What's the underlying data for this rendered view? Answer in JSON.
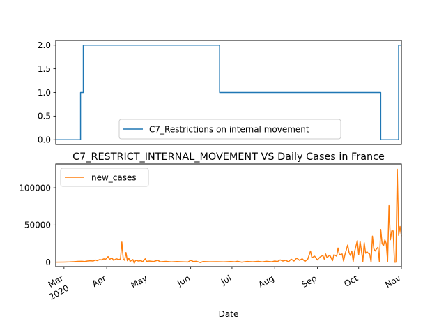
{
  "chart_data": [
    {
      "type": "line",
      "title": "",
      "xlabel": "",
      "ylabel": "",
      "x_range": [
        "2020-02-24",
        "2020-11-01"
      ],
      "ylim": [
        -0.1,
        2.1
      ],
      "yticks": [
        0.0,
        0.5,
        1.0,
        1.5,
        2.0
      ],
      "ytick_labels": [
        "0.0",
        "0.5",
        "1.0",
        "1.5",
        "2.0"
      ],
      "grid": false,
      "legend_position": "bottom-center",
      "series": [
        {
          "name": "C7_Restrictions on internal movement",
          "color": "#1f77b4",
          "step": true,
          "points": [
            [
              "2020-02-24",
              0
            ],
            [
              "2020-03-13",
              0
            ],
            [
              "2020-03-13",
              1
            ],
            [
              "2020-03-15",
              1
            ],
            [
              "2020-03-15",
              2
            ],
            [
              "2020-06-22",
              2
            ],
            [
              "2020-06-22",
              1
            ],
            [
              "2020-10-17",
              1
            ],
            [
              "2020-10-17",
              0
            ],
            [
              "2020-10-30",
              0
            ],
            [
              "2020-10-30",
              2
            ],
            [
              "2020-11-01",
              2
            ]
          ]
        }
      ]
    },
    {
      "type": "line",
      "title": "C7_RESTRICT_INTERNAL_MOVEMENT VS Daily Cases in France",
      "xlabel": "Date",
      "ylabel": "",
      "x_range": [
        "2020-02-24",
        "2020-11-01"
      ],
      "ylim": [
        -6000,
        132000
      ],
      "yticks": [
        0,
        50000,
        100000
      ],
      "ytick_labels": [
        "0",
        "50000",
        "100000"
      ],
      "x_ticks": [
        {
          "date": "2020-03-01",
          "label": "Mar",
          "sublabel": "2020"
        },
        {
          "date": "2020-04-01",
          "label": "Apr",
          "sublabel": ""
        },
        {
          "date": "2020-05-01",
          "label": "May",
          "sublabel": ""
        },
        {
          "date": "2020-06-01",
          "label": "Jun",
          "sublabel": ""
        },
        {
          "date": "2020-07-01",
          "label": "Jul",
          "sublabel": ""
        },
        {
          "date": "2020-08-01",
          "label": "Aug",
          "sublabel": ""
        },
        {
          "date": "2020-09-01",
          "label": "Sep",
          "sublabel": ""
        },
        {
          "date": "2020-10-01",
          "label": "Oct",
          "sublabel": ""
        },
        {
          "date": "2020-11-01",
          "label": "Nov",
          "sublabel": ""
        }
      ],
      "grid": false,
      "legend_position": "top-left",
      "series": [
        {
          "name": "new_cases",
          "color": "#ff7f0e",
          "points": [
            [
              "2020-02-24",
              0
            ],
            [
              "2020-03-01",
              100
            ],
            [
              "2020-03-05",
              300
            ],
            [
              "2020-03-08",
              600
            ],
            [
              "2020-03-11",
              1000
            ],
            [
              "2020-03-14",
              1200
            ],
            [
              "2020-03-16",
              800
            ],
            [
              "2020-03-18",
              1500
            ],
            [
              "2020-03-20",
              1900
            ],
            [
              "2020-03-22",
              1500
            ],
            [
              "2020-03-24",
              2800
            ],
            [
              "2020-03-25",
              2000
            ],
            [
              "2020-03-27",
              3500
            ],
            [
              "2020-03-28",
              3000
            ],
            [
              "2020-03-30",
              4500
            ],
            [
              "2020-03-31",
              3500
            ],
            [
              "2020-04-02",
              7500
            ],
            [
              "2020-04-03",
              4000
            ],
            [
              "2020-04-05",
              5200
            ],
            [
              "2020-04-06",
              2500
            ],
            [
              "2020-04-08",
              4500
            ],
            [
              "2020-04-10",
              3500
            ],
            [
              "2020-04-11",
              4200
            ],
            [
              "2020-04-12",
              27000
            ],
            [
              "2020-04-13",
              4000
            ],
            [
              "2020-04-14",
              2500
            ],
            [
              "2020-04-15",
              13000
            ],
            [
              "2020-04-16",
              2000
            ],
            [
              "2020-04-17",
              5500
            ],
            [
              "2020-04-18",
              1000
            ],
            [
              "2020-04-20",
              3500
            ],
            [
              "2020-04-21",
              -1500
            ],
            [
              "2020-04-22",
              2500
            ],
            [
              "2020-04-24",
              1500
            ],
            [
              "2020-04-26",
              2000
            ],
            [
              "2020-04-27",
              500
            ],
            [
              "2020-04-29",
              4500
            ],
            [
              "2020-04-30",
              1000
            ],
            [
              "2020-05-02",
              1500
            ],
            [
              "2020-05-05",
              800
            ],
            [
              "2020-05-08",
              2500
            ],
            [
              "2020-05-10",
              500
            ],
            [
              "2020-05-14",
              1000
            ],
            [
              "2020-05-18",
              300
            ],
            [
              "2020-05-22",
              800
            ],
            [
              "2020-05-26",
              500
            ],
            [
              "2020-05-30",
              200
            ],
            [
              "2020-06-01",
              2500
            ],
            [
              "2020-06-03",
              800
            ],
            [
              "2020-06-05",
              1200
            ],
            [
              "2020-06-08",
              -500
            ],
            [
              "2020-06-10",
              800
            ],
            [
              "2020-06-15",
              400
            ],
            [
              "2020-06-20",
              600
            ],
            [
              "2020-06-25",
              300
            ],
            [
              "2020-06-30",
              800
            ],
            [
              "2020-07-03",
              500
            ],
            [
              "2020-07-05",
              1200
            ],
            [
              "2020-07-08",
              0
            ],
            [
              "2020-07-12",
              900
            ],
            [
              "2020-07-16",
              500
            ],
            [
              "2020-07-20",
              1000
            ],
            [
              "2020-07-23",
              300
            ],
            [
              "2020-07-26",
              1200
            ],
            [
              "2020-07-30",
              500
            ],
            [
              "2020-08-01",
              1500
            ],
            [
              "2020-08-03",
              800
            ],
            [
              "2020-08-05",
              3000
            ],
            [
              "2020-08-07",
              1500
            ],
            [
              "2020-08-09",
              2500
            ],
            [
              "2020-08-11",
              500
            ],
            [
              "2020-08-13",
              4000
            ],
            [
              "2020-08-15",
              1500
            ],
            [
              "2020-08-17",
              5500
            ],
            [
              "2020-08-19",
              2500
            ],
            [
              "2020-08-21",
              4500
            ],
            [
              "2020-08-23",
              1000
            ],
            [
              "2020-08-25",
              4000
            ],
            [
              "2020-08-27",
              15000
            ],
            [
              "2020-08-28",
              6000
            ],
            [
              "2020-08-30",
              8000
            ],
            [
              "2020-09-01",
              3000
            ],
            [
              "2020-09-03",
              7000
            ],
            [
              "2020-09-05",
              9000
            ],
            [
              "2020-09-06",
              4000
            ],
            [
              "2020-09-07",
              11000
            ],
            [
              "2020-09-08",
              6000
            ],
            [
              "2020-09-10",
              9500
            ],
            [
              "2020-09-12",
              2000
            ],
            [
              "2020-09-13",
              10000
            ],
            [
              "2020-09-15",
              8000
            ],
            [
              "2020-09-16",
              19000
            ],
            [
              "2020-09-17",
              10000
            ],
            [
              "2020-09-19",
              11000
            ],
            [
              "2020-09-20",
              1500
            ],
            [
              "2020-09-21",
              10000
            ],
            [
              "2020-09-23",
              23000
            ],
            [
              "2020-09-24",
              13000
            ],
            [
              "2020-09-25",
              9000
            ],
            [
              "2020-09-26",
              15000
            ],
            [
              "2020-09-27",
              1000
            ],
            [
              "2020-09-28",
              14000
            ],
            [
              "2020-09-30",
              29000
            ],
            [
              "2020-10-01",
              10000
            ],
            [
              "2020-10-02",
              28000
            ],
            [
              "2020-10-03",
              15000
            ],
            [
              "2020-10-04",
              1000
            ],
            [
              "2020-10-05",
              26000
            ],
            [
              "2020-10-06",
              12000
            ],
            [
              "2020-10-07",
              14000
            ],
            [
              "2020-10-08",
              12000
            ],
            [
              "2020-10-09",
              11000
            ],
            [
              "2020-10-10",
              0
            ],
            [
              "2020-10-11",
              35000
            ],
            [
              "2020-10-12",
              18000
            ],
            [
              "2020-10-13",
              15000
            ],
            [
              "2020-10-14",
              18000
            ],
            [
              "2020-10-15",
              20000
            ],
            [
              "2020-10-16",
              1000
            ],
            [
              "2020-10-17",
              44000
            ],
            [
              "2020-10-18",
              25000
            ],
            [
              "2020-10-19",
              22000
            ],
            [
              "2020-10-20",
              30000
            ],
            [
              "2020-10-21",
              25000
            ],
            [
              "2020-10-22",
              1000
            ],
            [
              "2020-10-23",
              76000
            ],
            [
              "2020-10-24",
              30000
            ],
            [
              "2020-10-25",
              42000
            ],
            [
              "2020-10-26",
              42000
            ],
            [
              "2020-10-27",
              0
            ],
            [
              "2020-10-28",
              0
            ],
            [
              "2020-10-29",
              125000
            ],
            [
              "2020-10-30",
              36000
            ],
            [
              "2020-10-31",
              48000
            ],
            [
              "2020-11-01",
              35000
            ]
          ]
        }
      ]
    }
  ]
}
